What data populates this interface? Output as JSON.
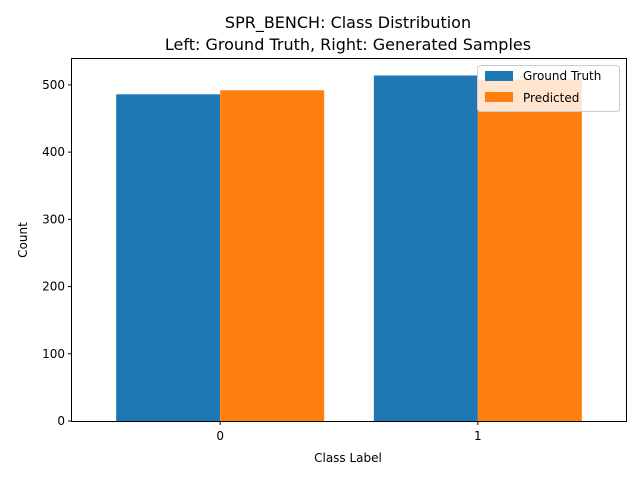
{
  "chart_data": {
    "type": "bar",
    "title_line1": "SPR_BENCH: Class Distribution",
    "title_line2": "Left: Ground Truth, Right: Generated Samples",
    "xlabel": "Class Label",
    "ylabel": "Count",
    "categories": [
      "0",
      "1"
    ],
    "series": [
      {
        "name": "Ground Truth",
        "values": [
          486,
          514
        ],
        "color": "#1f77b4"
      },
      {
        "name": "Predicted",
        "values": [
          492,
          508
        ],
        "color": "#ff7f0e"
      }
    ],
    "ylim": [
      0,
      540
    ],
    "yticks": [
      0,
      100,
      200,
      300,
      400,
      500
    ],
    "grid": false,
    "legend": "top-right"
  }
}
